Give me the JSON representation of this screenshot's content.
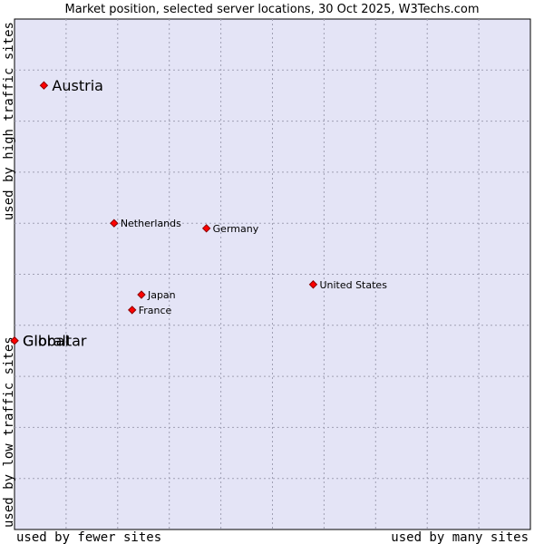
{
  "chart_data": {
    "type": "scatter",
    "title": "Market position, selected server locations, 30 Oct 2025, W3Techs.com",
    "xlabel_left": "used by fewer sites",
    "xlabel_right": "used by many sites",
    "ylabel_top": "used by high traffic sites",
    "ylabel_bottom": "used by low traffic sites",
    "xlim": [
      0,
      10
    ],
    "ylim": [
      0,
      10
    ],
    "grid": true,
    "points": [
      {
        "label": "Austria",
        "x": 0.57,
        "y": 8.7,
        "emphasis": true
      },
      {
        "label": "Gibraltar",
        "x": 0.0,
        "y": 3.7,
        "emphasis": true
      },
      {
        "label": "Global",
        "x": 0.0,
        "y": 3.7,
        "emphasis": true
      },
      {
        "label": "Netherlands",
        "x": 1.93,
        "y": 6.0,
        "emphasis": false
      },
      {
        "label": "Germany",
        "x": 3.72,
        "y": 5.9,
        "emphasis": false
      },
      {
        "label": "United States",
        "x": 5.79,
        "y": 4.8,
        "emphasis": false
      },
      {
        "label": "Japan",
        "x": 2.46,
        "y": 4.6,
        "emphasis": false
      },
      {
        "label": "France",
        "x": 2.28,
        "y": 4.3,
        "emphasis": false
      }
    ]
  },
  "colors": {
    "plot_background": "#e4e4f6",
    "marker_fill": "#ff0000",
    "marker_stroke": "#8b0000",
    "grid": "#a0a0b4"
  }
}
